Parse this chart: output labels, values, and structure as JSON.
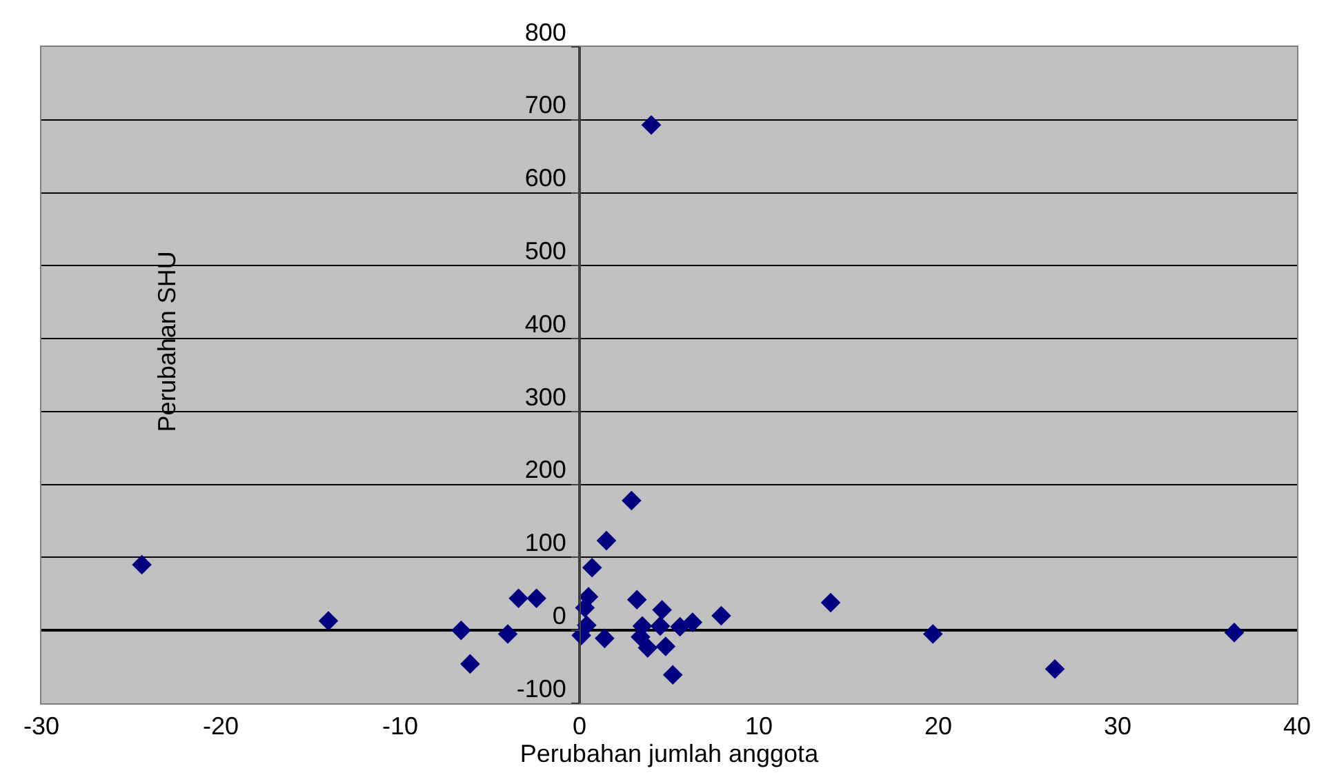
{
  "chart_data": {
    "type": "scatter",
    "xlabel": "Perubahan jumlah anggota",
    "ylabel": "Perubahan SHU",
    "series": [
      {
        "color": "#000080",
        "x": [
          -24.4,
          -14.0,
          -6.6,
          -6.1,
          -4.0,
          -3.4,
          -2.4,
          0.1,
          0.4,
          0.3,
          0.5,
          0.7,
          1.5,
          2.9,
          1.4,
          3.2,
          3.5,
          3.4,
          3.8,
          4.5,
          4.6,
          4.8,
          5.2,
          5.6,
          6.3,
          7.9,
          14.0,
          4.0,
          19.7,
          26.5,
          36.5
        ],
        "values": [
          90,
          13,
          0,
          -46,
          -5,
          44,
          44,
          -7,
          7,
          31,
          46,
          86,
          123,
          178,
          -11,
          42,
          6,
          -9,
          -24,
          6,
          28,
          -22,
          -61,
          5,
          11,
          20,
          38,
          693,
          -5,
          -53,
          -3
        ]
      }
    ],
    "marker": "diamond",
    "xlim": [
      -30,
      40
    ],
    "xticks": [
      -30,
      -20,
      -10,
      0,
      10,
      20,
      30,
      40
    ],
    "ylim": [
      -100,
      800
    ],
    "yticks": [
      -100,
      0,
      100,
      200,
      300,
      400,
      500,
      600,
      700,
      800
    ],
    "grid": "y",
    "legend": false
  }
}
